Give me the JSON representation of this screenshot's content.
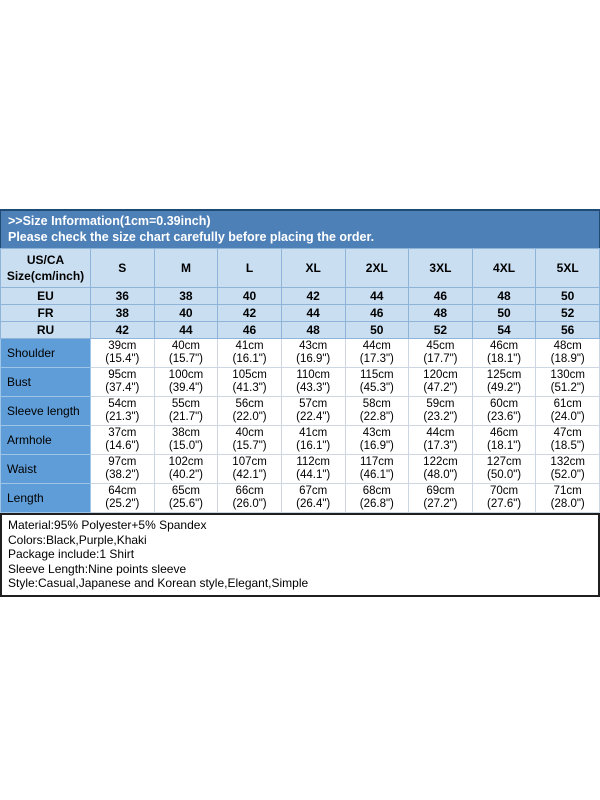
{
  "banner": {
    "title": ">>Size Information(1cm=0.39inch)",
    "subtitle": "Please check the size chart carefully before placing the order."
  },
  "table": {
    "corner_label": "US/CA\nSize(cm/inch)",
    "sizes": [
      "S",
      "M",
      "L",
      "XL",
      "2XL",
      "3XL",
      "4XL",
      "5XL"
    ],
    "region_rows": [
      {
        "label": "EU",
        "values": [
          "36",
          "38",
          "40",
          "42",
          "44",
          "46",
          "48",
          "50"
        ]
      },
      {
        "label": "FR",
        "values": [
          "38",
          "40",
          "42",
          "44",
          "46",
          "48",
          "50",
          "52"
        ]
      },
      {
        "label": "RU",
        "values": [
          "42",
          "44",
          "46",
          "48",
          "50",
          "52",
          "54",
          "56"
        ]
      }
    ],
    "measure_rows": [
      {
        "label": "Shoulder",
        "cells": [
          "39cm\n(15.4\")",
          "40cm\n(15.7\")",
          "41cm\n(16.1\")",
          "43cm\n(16.9\")",
          "44cm\n(17.3\")",
          "45cm\n(17.7\")",
          "46cm\n(18.1\")",
          "48cm\n(18.9\")"
        ]
      },
      {
        "label": "Bust",
        "cells": [
          "95cm\n(37.4\")",
          "100cm\n(39.4\")",
          "105cm\n(41.3\")",
          "110cm\n(43.3\")",
          "115cm\n(45.3\")",
          "120cm\n(47.2\")",
          "125cm\n(49.2\")",
          "130cm\n(51.2\")"
        ]
      },
      {
        "label": "Sleeve length",
        "cells": [
          "54cm\n(21.3\")",
          "55cm\n(21.7\")",
          "56cm\n(22.0\")",
          "57cm\n(22.4\")",
          "58cm\n(22.8\")",
          "59cm\n(23.2\")",
          "60cm\n(23.6\")",
          "61cm\n(24.0\")"
        ]
      },
      {
        "label": "Armhole",
        "cells": [
          "37cm\n(14.6\")",
          "38cm\n(15.0\")",
          "40cm\n(15.7\")",
          "41cm\n(16.1\")",
          "43cm\n(16.9\")",
          "44cm\n(17.3\")",
          "46cm\n(18.1\")",
          "47cm\n(18.5\")"
        ]
      },
      {
        "label": "Waist",
        "cells": [
          "97cm\n(38.2\")",
          "102cm\n(40.2\")",
          "107cm\n(42.1\")",
          "112cm\n(44.1\")",
          "117cm\n(46.1\")",
          "122cm\n(48.0\")",
          "127cm\n(50.0\")",
          "132cm\n(52.0\")"
        ]
      },
      {
        "label": "Length",
        "cells": [
          "64cm\n(25.2\")",
          "65cm\n(25.6\")",
          "66cm\n(26.0\")",
          "67cm\n(26.4\")",
          "68cm\n(26.8\")",
          "69cm\n(27.2\")",
          "70cm\n(27.6\")",
          "71cm\n(28.0\")"
        ]
      }
    ]
  },
  "info": {
    "lines": [
      "Material:95% Polyester+5% Spandex",
      "Colors:Black,Purple,Khaki",
      "Package include:1 Shirt",
      "Sleeve Length:Nine points sleeve",
      "Style:Casual,Japanese and Korean style,Elegant,Simple"
    ]
  },
  "colors": {
    "banner_background": "#4e80b8",
    "banner_border": "#1e4a74",
    "header_row_background": "#c9def1",
    "header_grid": "#8fb4da",
    "label_column_background": "#5f9dd8",
    "info_box_border": "#1f1f1f",
    "banner_text": "#ffffff",
    "table_text": "#000000"
  }
}
